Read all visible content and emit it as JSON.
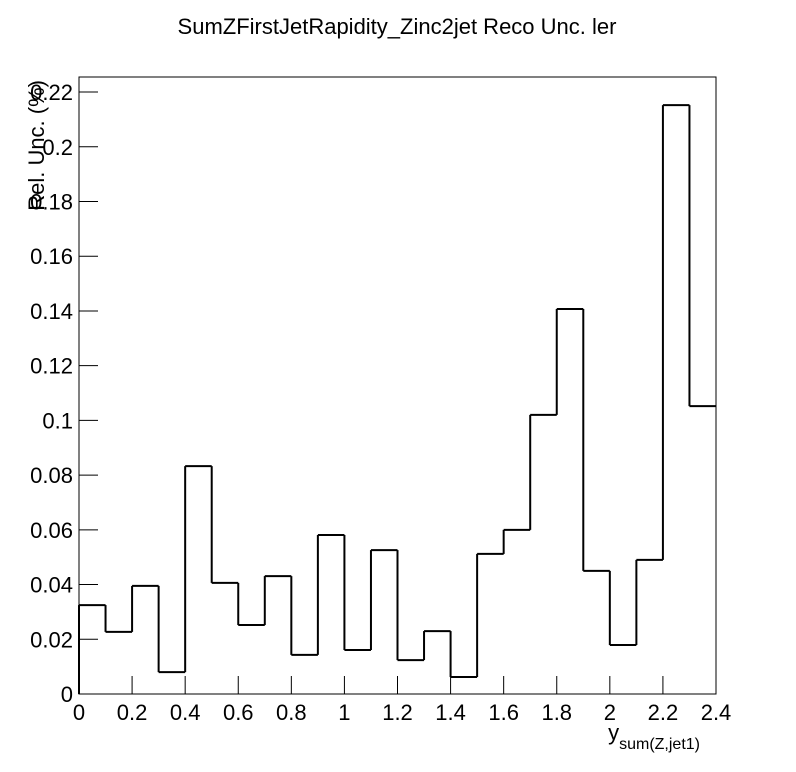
{
  "chart_data": {
    "type": "histogram",
    "title": "SumZFirstJetRapidity_Zinc2jet Reco Unc. ler",
    "xlabel": "y",
    "xlabel_subscript": "sum(Z,jet1)",
    "ylabel": "Rel. Unc. (%)",
    "bins": [
      0,
      0.1,
      0.2,
      0.3,
      0.4,
      0.5,
      0.6,
      0.7,
      0.8,
      0.9,
      1.0,
      1.1,
      1.2,
      1.3,
      1.4,
      1.5,
      1.6,
      1.7,
      1.8,
      1.9,
      2.0,
      2.1,
      2.2,
      2.3,
      2.4
    ],
    "counts": [
      0.0325,
      0.0227,
      0.0395,
      0.008,
      0.0833,
      0.0406,
      0.0252,
      0.0431,
      0.0143,
      0.0581,
      0.0161,
      0.0526,
      0.0124,
      0.023,
      0.0062,
      0.0512,
      0.06,
      0.102,
      0.1407,
      0.045,
      0.0179,
      0.049,
      0.2152,
      0.1052
    ],
    "color": "#000000",
    "xlim": [
      0,
      2.4
    ],
    "ylim": [
      0,
      0.2255
    ],
    "xticks": [
      0,
      0.2,
      0.4,
      0.6,
      0.8,
      1,
      1.2,
      1.4,
      1.6,
      1.8,
      2,
      2.2,
      2.4
    ],
    "yticks": [
      0,
      0.02,
      0.04,
      0.06,
      0.08,
      0.1,
      0.12,
      0.14,
      0.16,
      0.18,
      0.2,
      0.22
    ],
    "grid": false
  }
}
